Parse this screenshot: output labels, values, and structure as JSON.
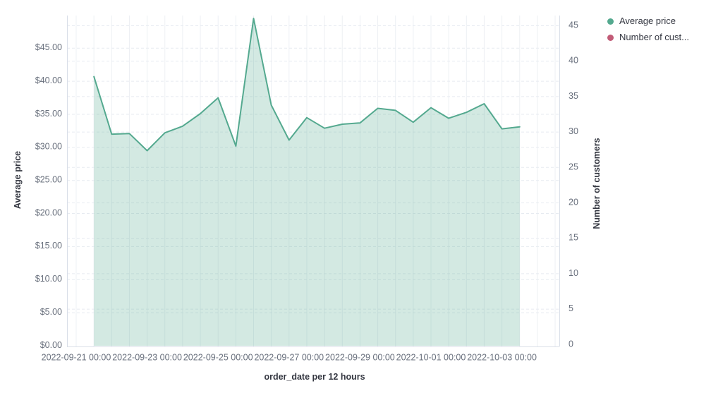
{
  "legend": {
    "items": [
      {
        "label": "Average price",
        "color": "#54A98F"
      },
      {
        "label": "Number of cust...",
        "color": "#C25B77"
      }
    ]
  },
  "chart_data": {
    "type": "area",
    "title": "",
    "xlabel": "order_date per 12 hours",
    "ylabel_left": "Average price",
    "ylabel_right": "Number of customers",
    "x": [
      "2022-09-21 12:00",
      "2022-09-22 00:00",
      "2022-09-22 12:00",
      "2022-09-23 00:00",
      "2022-09-23 12:00",
      "2022-09-24 00:00",
      "2022-09-24 12:00",
      "2022-09-25 00:00",
      "2022-09-25 12:00",
      "2022-09-26 00:00",
      "2022-09-26 12:00",
      "2022-09-27 00:00",
      "2022-09-27 12:00",
      "2022-09-28 00:00",
      "2022-09-28 12:00",
      "2022-09-29 00:00",
      "2022-09-29 12:00",
      "2022-09-30 00:00",
      "2022-09-30 12:00",
      "2022-10-01 00:00",
      "2022-10-01 12:00",
      "2022-10-02 00:00",
      "2022-10-02 12:00",
      "2022-10-03 00:00",
      "2022-10-03 12:00"
    ],
    "series": [
      {
        "name": "Average price",
        "axis": "left",
        "color": "#54A98F",
        "fill_opacity": 0.26,
        "values": [
          40.7,
          32.0,
          32.1,
          29.5,
          32.2,
          33.2,
          35.1,
          37.5,
          30.2,
          49.5,
          36.4,
          31.1,
          34.5,
          32.9,
          33.5,
          33.7,
          35.9,
          35.6,
          33.8,
          36.0,
          34.4,
          35.3,
          36.6,
          32.8,
          33.1
        ]
      },
      {
        "name": "Number of cust...",
        "axis": "right",
        "color": "#C25B77",
        "values": []
      }
    ],
    "left_axis": {
      "ticks": [
        "$0.00",
        "$5.00",
        "$10.00",
        "$15.00",
        "$20.00",
        "$25.00",
        "$30.00",
        "$35.00",
        "$40.00",
        "$45.00"
      ],
      "range": [
        0,
        50
      ]
    },
    "right_axis": {
      "ticks": [
        "0",
        "5",
        "10",
        "15",
        "20",
        "25",
        "30",
        "35",
        "40",
        "45"
      ],
      "range": [
        0,
        46.5
      ]
    },
    "x_axis": {
      "ticks": [
        "2022-09-21 00:00",
        "2022-09-23 00:00",
        "2022-09-25 00:00",
        "2022-09-27 00:00",
        "2022-09-29 00:00",
        "2022-10-01 00:00",
        "2022-10-03 00:00"
      ]
    },
    "grid": "on",
    "legend_position": "top-right"
  }
}
